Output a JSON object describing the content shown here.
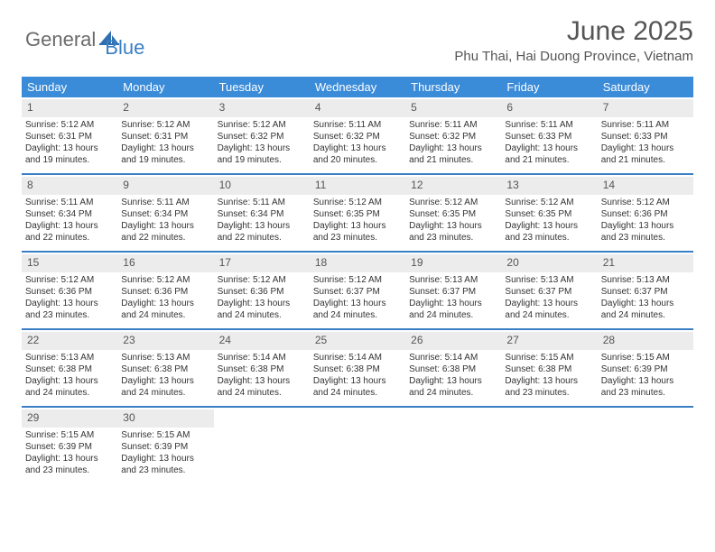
{
  "logo": {
    "part1": "General",
    "part2": "Blue"
  },
  "title": "June 2025",
  "location": "Phu Thai, Hai Duong Province, Vietnam",
  "colors": {
    "header_bg": "#3a8bd8",
    "divider": "#3a7fc4",
    "daynum_bg": "#ececec",
    "logo_gray": "#6b6b6b",
    "logo_blue": "#3a7fc4"
  },
  "day_names": [
    "Sunday",
    "Monday",
    "Tuesday",
    "Wednesday",
    "Thursday",
    "Friday",
    "Saturday"
  ],
  "weeks": [
    [
      {
        "n": "1",
        "sr": "Sunrise: 5:12 AM",
        "ss": "Sunset: 6:31 PM",
        "d1": "Daylight: 13 hours",
        "d2": "and 19 minutes."
      },
      {
        "n": "2",
        "sr": "Sunrise: 5:12 AM",
        "ss": "Sunset: 6:31 PM",
        "d1": "Daylight: 13 hours",
        "d2": "and 19 minutes."
      },
      {
        "n": "3",
        "sr": "Sunrise: 5:12 AM",
        "ss": "Sunset: 6:32 PM",
        "d1": "Daylight: 13 hours",
        "d2": "and 19 minutes."
      },
      {
        "n": "4",
        "sr": "Sunrise: 5:11 AM",
        "ss": "Sunset: 6:32 PM",
        "d1": "Daylight: 13 hours",
        "d2": "and 20 minutes."
      },
      {
        "n": "5",
        "sr": "Sunrise: 5:11 AM",
        "ss": "Sunset: 6:32 PM",
        "d1": "Daylight: 13 hours",
        "d2": "and 21 minutes."
      },
      {
        "n": "6",
        "sr": "Sunrise: 5:11 AM",
        "ss": "Sunset: 6:33 PM",
        "d1": "Daylight: 13 hours",
        "d2": "and 21 minutes."
      },
      {
        "n": "7",
        "sr": "Sunrise: 5:11 AM",
        "ss": "Sunset: 6:33 PM",
        "d1": "Daylight: 13 hours",
        "d2": "and 21 minutes."
      }
    ],
    [
      {
        "n": "8",
        "sr": "Sunrise: 5:11 AM",
        "ss": "Sunset: 6:34 PM",
        "d1": "Daylight: 13 hours",
        "d2": "and 22 minutes."
      },
      {
        "n": "9",
        "sr": "Sunrise: 5:11 AM",
        "ss": "Sunset: 6:34 PM",
        "d1": "Daylight: 13 hours",
        "d2": "and 22 minutes."
      },
      {
        "n": "10",
        "sr": "Sunrise: 5:11 AM",
        "ss": "Sunset: 6:34 PM",
        "d1": "Daylight: 13 hours",
        "d2": "and 22 minutes."
      },
      {
        "n": "11",
        "sr": "Sunrise: 5:12 AM",
        "ss": "Sunset: 6:35 PM",
        "d1": "Daylight: 13 hours",
        "d2": "and 23 minutes."
      },
      {
        "n": "12",
        "sr": "Sunrise: 5:12 AM",
        "ss": "Sunset: 6:35 PM",
        "d1": "Daylight: 13 hours",
        "d2": "and 23 minutes."
      },
      {
        "n": "13",
        "sr": "Sunrise: 5:12 AM",
        "ss": "Sunset: 6:35 PM",
        "d1": "Daylight: 13 hours",
        "d2": "and 23 minutes."
      },
      {
        "n": "14",
        "sr": "Sunrise: 5:12 AM",
        "ss": "Sunset: 6:36 PM",
        "d1": "Daylight: 13 hours",
        "d2": "and 23 minutes."
      }
    ],
    [
      {
        "n": "15",
        "sr": "Sunrise: 5:12 AM",
        "ss": "Sunset: 6:36 PM",
        "d1": "Daylight: 13 hours",
        "d2": "and 23 minutes."
      },
      {
        "n": "16",
        "sr": "Sunrise: 5:12 AM",
        "ss": "Sunset: 6:36 PM",
        "d1": "Daylight: 13 hours",
        "d2": "and 24 minutes."
      },
      {
        "n": "17",
        "sr": "Sunrise: 5:12 AM",
        "ss": "Sunset: 6:36 PM",
        "d1": "Daylight: 13 hours",
        "d2": "and 24 minutes."
      },
      {
        "n": "18",
        "sr": "Sunrise: 5:12 AM",
        "ss": "Sunset: 6:37 PM",
        "d1": "Daylight: 13 hours",
        "d2": "and 24 minutes."
      },
      {
        "n": "19",
        "sr": "Sunrise: 5:13 AM",
        "ss": "Sunset: 6:37 PM",
        "d1": "Daylight: 13 hours",
        "d2": "and 24 minutes."
      },
      {
        "n": "20",
        "sr": "Sunrise: 5:13 AM",
        "ss": "Sunset: 6:37 PM",
        "d1": "Daylight: 13 hours",
        "d2": "and 24 minutes."
      },
      {
        "n": "21",
        "sr": "Sunrise: 5:13 AM",
        "ss": "Sunset: 6:37 PM",
        "d1": "Daylight: 13 hours",
        "d2": "and 24 minutes."
      }
    ],
    [
      {
        "n": "22",
        "sr": "Sunrise: 5:13 AM",
        "ss": "Sunset: 6:38 PM",
        "d1": "Daylight: 13 hours",
        "d2": "and 24 minutes."
      },
      {
        "n": "23",
        "sr": "Sunrise: 5:13 AM",
        "ss": "Sunset: 6:38 PM",
        "d1": "Daylight: 13 hours",
        "d2": "and 24 minutes."
      },
      {
        "n": "24",
        "sr": "Sunrise: 5:14 AM",
        "ss": "Sunset: 6:38 PM",
        "d1": "Daylight: 13 hours",
        "d2": "and 24 minutes."
      },
      {
        "n": "25",
        "sr": "Sunrise: 5:14 AM",
        "ss": "Sunset: 6:38 PM",
        "d1": "Daylight: 13 hours",
        "d2": "and 24 minutes."
      },
      {
        "n": "26",
        "sr": "Sunrise: 5:14 AM",
        "ss": "Sunset: 6:38 PM",
        "d1": "Daylight: 13 hours",
        "d2": "and 24 minutes."
      },
      {
        "n": "27",
        "sr": "Sunrise: 5:15 AM",
        "ss": "Sunset: 6:38 PM",
        "d1": "Daylight: 13 hours",
        "d2": "and 23 minutes."
      },
      {
        "n": "28",
        "sr": "Sunrise: 5:15 AM",
        "ss": "Sunset: 6:39 PM",
        "d1": "Daylight: 13 hours",
        "d2": "and 23 minutes."
      }
    ],
    [
      {
        "n": "29",
        "sr": "Sunrise: 5:15 AM",
        "ss": "Sunset: 6:39 PM",
        "d1": "Daylight: 13 hours",
        "d2": "and 23 minutes."
      },
      {
        "n": "30",
        "sr": "Sunrise: 5:15 AM",
        "ss": "Sunset: 6:39 PM",
        "d1": "Daylight: 13 hours",
        "d2": "and 23 minutes."
      },
      null,
      null,
      null,
      null,
      null
    ]
  ]
}
